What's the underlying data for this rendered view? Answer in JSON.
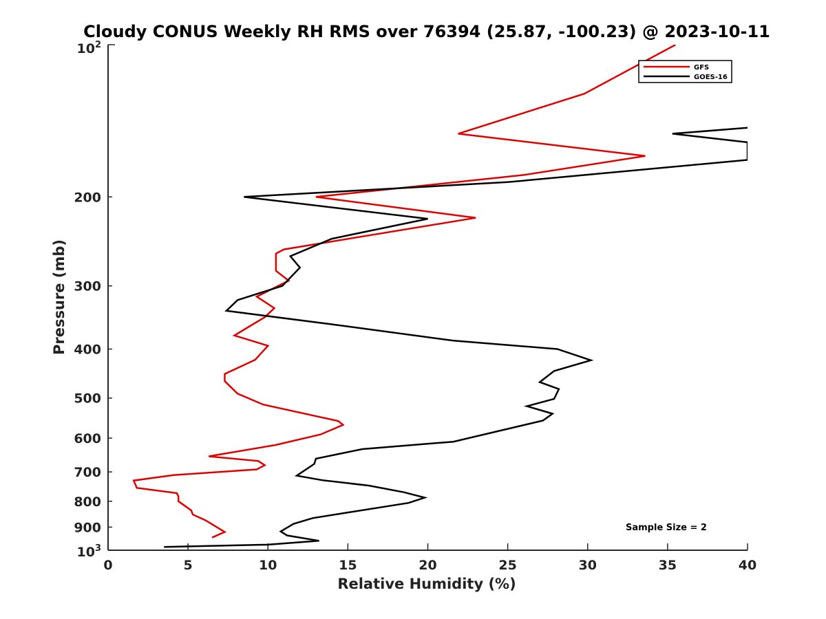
{
  "chart_data": {
    "type": "line",
    "title": "Cloudy CONUS Weekly RH RMS over 76394 (25.87, -100.23) @ 2023-10-11",
    "xlabel": "Relative Humidity (%)",
    "ylabel": "Pressure (mb)",
    "xlim": [
      0,
      40
    ],
    "ylim": [
      100,
      1000
    ],
    "yscale": "log",
    "y_inverted": true,
    "grid": false,
    "legend_position": "top-right",
    "x_ticks": [
      0,
      5,
      10,
      15,
      20,
      25,
      30,
      35,
      40
    ],
    "x_tick_labels": [
      "0",
      "5",
      "10",
      "15",
      "20",
      "25",
      "30",
      "35",
      "40"
    ],
    "y_ticks": [
      200,
      300,
      400,
      500,
      600,
      700,
      800,
      900
    ],
    "y_tick_labels": [
      "200",
      "300",
      "400",
      "500",
      "600",
      "700",
      "800",
      "900"
    ],
    "y_top_label": {
      "base": "10",
      "exp": "2"
    },
    "y_bottom_label": {
      "base": "10",
      "exp": "3"
    },
    "annotation": "Sample Size = 2",
    "series": [
      {
        "name": "GFS",
        "color": "#e00000",
        "points": [
          [
            35.5,
            100
          ],
          [
            29.8,
            125
          ],
          [
            21.9,
            150
          ],
          [
            33.6,
            166
          ],
          [
            26.0,
            181
          ],
          [
            13.0,
            200
          ],
          [
            23.0,
            220
          ],
          [
            11.0,
            254
          ],
          [
            10.5,
            259
          ],
          [
            10.5,
            280
          ],
          [
            11.3,
            293
          ],
          [
            9.3,
            315
          ],
          [
            10.4,
            332
          ],
          [
            9.8,
            346
          ],
          [
            7.9,
            376
          ],
          [
            10.0,
            394
          ],
          [
            9.2,
            420
          ],
          [
            7.3,
            448
          ],
          [
            7.3,
            463
          ],
          [
            8.1,
            490
          ],
          [
            9.7,
            515
          ],
          [
            14.4,
            555
          ],
          [
            14.7,
            565
          ],
          [
            13.3,
            590
          ],
          [
            10.5,
            619
          ],
          [
            6.3,
            652
          ],
          [
            9.4,
            666
          ],
          [
            9.8,
            679
          ],
          [
            9.3,
            692
          ],
          [
            4.1,
            710
          ],
          [
            1.6,
            728
          ],
          [
            1.8,
            753
          ],
          [
            4.3,
            771
          ],
          [
            4.4,
            782
          ],
          [
            4.4,
            800
          ],
          [
            5.2,
            834
          ],
          [
            5.3,
            850
          ],
          [
            6.1,
            873
          ],
          [
            7.3,
            920
          ],
          [
            6.5,
            944
          ]
        ]
      },
      {
        "name": "GOES-16",
        "color": "#000000",
        "points": [
          [
            40.0,
            146
          ],
          [
            35.3,
            150
          ],
          [
            40.0,
            156
          ],
          [
            40.0,
            169
          ],
          [
            25.0,
            187
          ],
          [
            8.5,
            200
          ],
          [
            20.0,
            221
          ],
          [
            14.0,
            242
          ],
          [
            11.4,
            262
          ],
          [
            12.0,
            276
          ],
          [
            10.9,
            300
          ],
          [
            8.1,
            320
          ],
          [
            7.4,
            336
          ],
          [
            13.9,
            357
          ],
          [
            21.6,
            385
          ],
          [
            28.1,
            400
          ],
          [
            30.2,
            421
          ],
          [
            27.9,
            442
          ],
          [
            27.0,
            465
          ],
          [
            28.2,
            480
          ],
          [
            27.9,
            502
          ],
          [
            26.2,
            519
          ],
          [
            27.8,
            537
          ],
          [
            27.2,
            554
          ],
          [
            21.6,
            610
          ],
          [
            15.9,
            631
          ],
          [
            13.0,
            659
          ],
          [
            12.9,
            675
          ],
          [
            11.8,
            712
          ],
          [
            13.4,
            727
          ],
          [
            16.3,
            745
          ],
          [
            18.5,
            768
          ],
          [
            19.8,
            787
          ],
          [
            18.8,
            806
          ],
          [
            14.9,
            843
          ],
          [
            12.8,
            864
          ],
          [
            11.6,
            887
          ],
          [
            10.8,
            918
          ],
          [
            11.2,
            935
          ],
          [
            13.2,
            958
          ],
          [
            10.0,
            975
          ],
          [
            3.5,
            985
          ]
        ]
      }
    ]
  }
}
